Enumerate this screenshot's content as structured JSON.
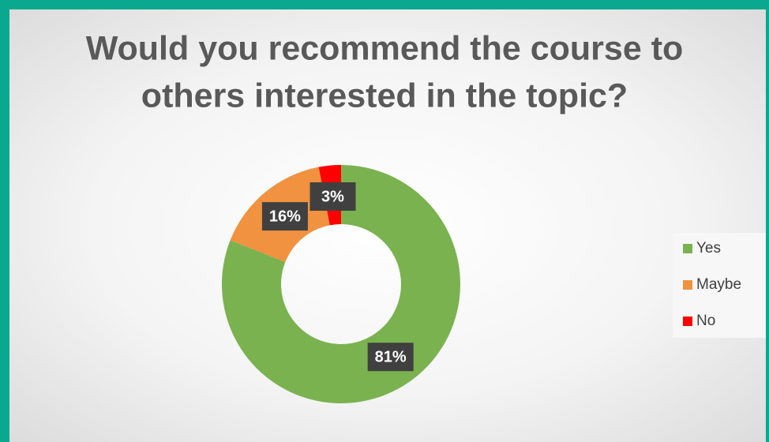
{
  "chart_data": {
    "type": "donut",
    "title": [
      "Would you recommend the course to",
      "others interested in the topic?"
    ],
    "categories": [
      "Yes",
      "Maybe",
      "No"
    ],
    "values": [
      81,
      16,
      3
    ],
    "value_labels": [
      "81%",
      "16%",
      "3%"
    ],
    "colors": [
      "#7ab24f",
      "#f0923f",
      "#ff0000"
    ],
    "legend": "right"
  }
}
